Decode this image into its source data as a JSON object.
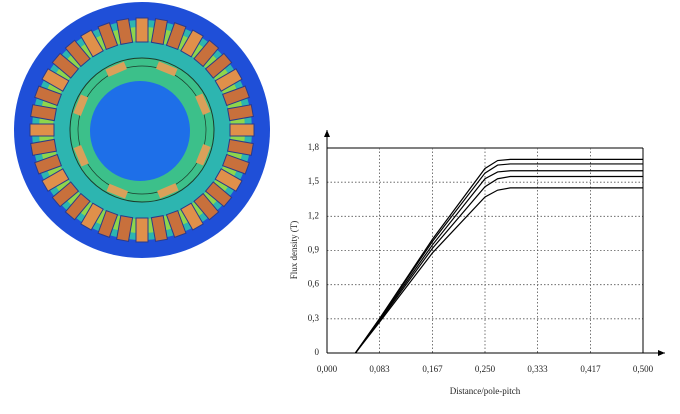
{
  "chart_data": {
    "type": "line",
    "xlabel": "Distance/pole-pitch",
    "ylabel": "Flux density (T)",
    "x": [
      0.045,
      0.083,
      0.167,
      0.25,
      0.27,
      0.29,
      0.5
    ],
    "series": [
      {
        "color": "#000000",
        "values": [
          0,
          0.3,
          1.0,
          1.62,
          1.69,
          1.7,
          1.7
        ]
      },
      {
        "color": "#000000",
        "values": [
          0,
          0.3,
          0.98,
          1.58,
          1.65,
          1.66,
          1.66
        ]
      },
      {
        "color": "#000000",
        "values": [
          0,
          0.29,
          0.95,
          1.53,
          1.59,
          1.6,
          1.6
        ]
      },
      {
        "color": "#000000",
        "values": [
          0,
          0.28,
          0.92,
          1.46,
          1.53,
          1.55,
          1.55
        ]
      },
      {
        "color": "#000000",
        "values": [
          0,
          0.27,
          0.88,
          1.37,
          1.43,
          1.45,
          1.45
        ]
      }
    ],
    "xlim": [
      0,
      0.5
    ],
    "ylim": [
      0,
      1.8
    ],
    "xticks": [
      {
        "value": 0,
        "label": "0,000"
      },
      {
        "value": 0.083,
        "label": "0,083"
      },
      {
        "value": 0.167,
        "label": "0,167"
      },
      {
        "value": 0.25,
        "label": "0,250"
      },
      {
        "value": 0.333,
        "label": "0,333"
      },
      {
        "value": 0.417,
        "label": "0,417"
      },
      {
        "value": 0.5,
        "label": "0,500"
      }
    ],
    "yticks": [
      0,
      {
        "value": 0.3,
        "label": "0,3"
      },
      {
        "value": 0.6,
        "label": "0,6"
      },
      {
        "value": 0.9,
        "label": "0,9"
      },
      {
        "value": 1.2,
        "label": "1,2"
      },
      {
        "value": 1.5,
        "label": "1,5"
      },
      {
        "value": 1.8,
        "label": "1,8"
      }
    ],
    "grid": true
  }
}
